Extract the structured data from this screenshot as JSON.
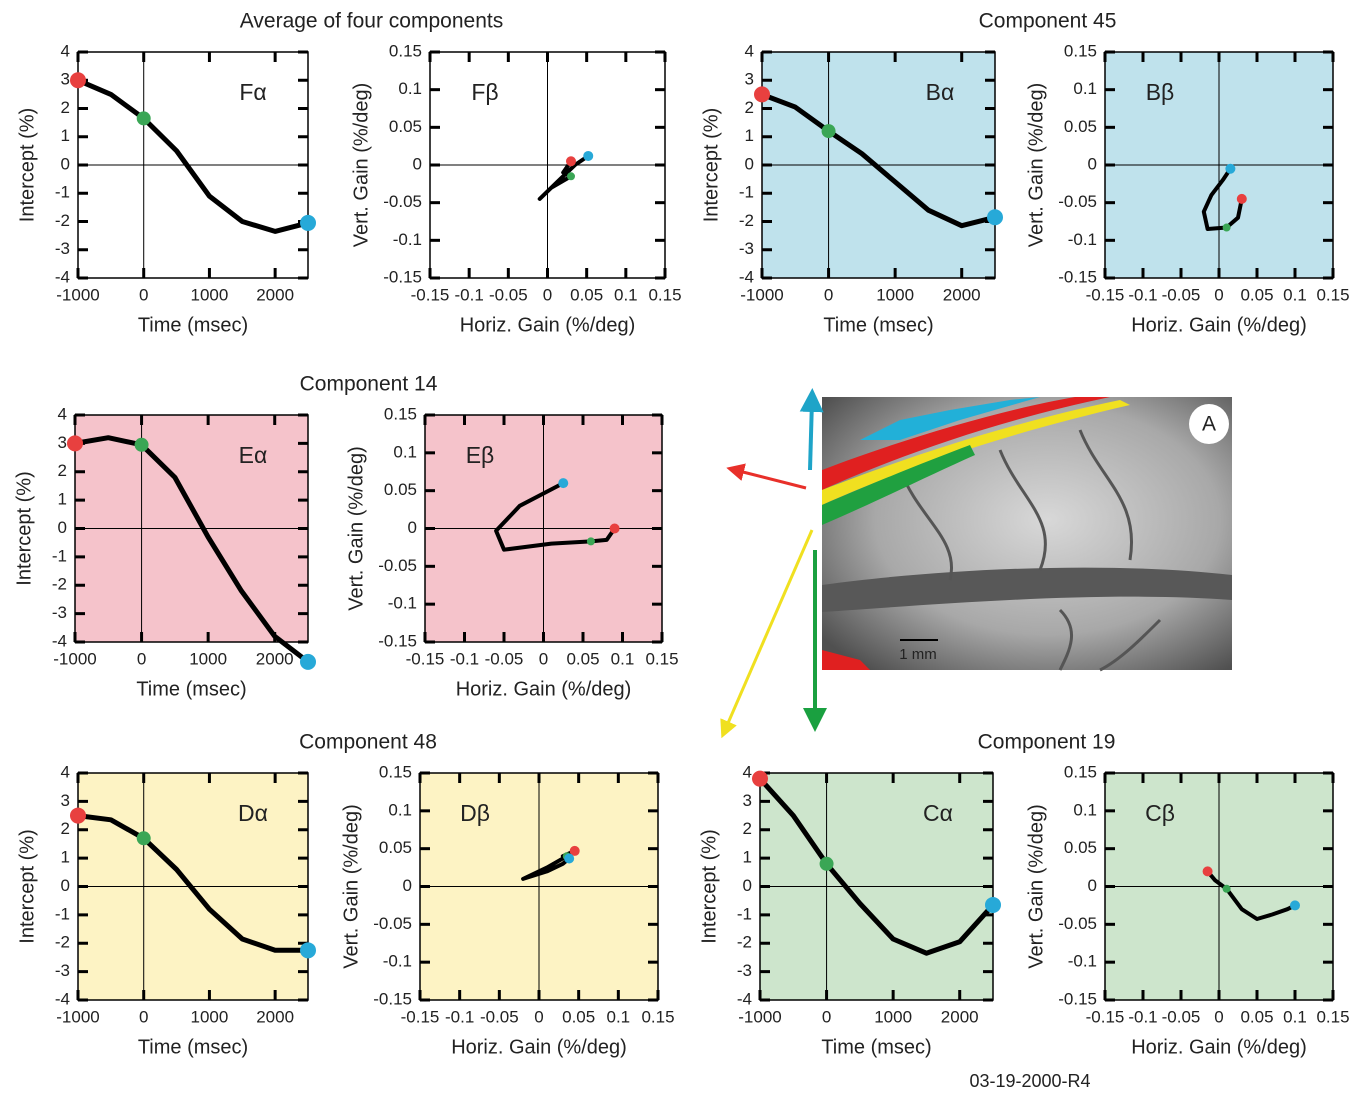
{
  "chart_data": [
    {
      "type": "line",
      "title": "Average of four components",
      "label": "Fα",
      "background": "#ffffff",
      "color": "#000000",
      "marker_colors": [
        "#e8403f",
        "#3aa655",
        "#27a9d8"
      ],
      "x_label": "Time (msec)",
      "y_label": "Intercept (%)",
      "x": [
        -1000,
        -500,
        0,
        500,
        1000,
        1500,
        2000,
        2500
      ],
      "values": [
        3.0,
        2.5,
        1.65,
        0.5,
        -1.1,
        -2.0,
        -2.35,
        -2.05
      ],
      "xlim": [
        -1000,
        2500
      ],
      "ylim": [
        -4,
        4
      ],
      "xticks": [
        -1000,
        0,
        1000,
        2000
      ],
      "yticks": [
        -4,
        -3,
        -2,
        -1,
        0,
        1,
        2,
        3,
        4
      ]
    },
    {
      "type": "line",
      "label": "Fβ",
      "background": "#ffffff",
      "color": "#000000",
      "marker_colors": [
        "#e8403f",
        "#3aa655",
        "#27a9d8"
      ],
      "x_label": "Horiz. Gain (%/deg)",
      "y_label": "Vert. Gain (%/deg)",
      "x": [
        0.03,
        0.02,
        0.03,
        0.005,
        -0.01,
        0.01,
        0.035,
        0.052
      ],
      "values": [
        0.005,
        -0.01,
        -0.015,
        -0.03,
        -0.045,
        -0.025,
        0.0,
        0.012
      ],
      "xlim": [
        -0.15,
        0.15
      ],
      "ylim": [
        -0.15,
        0.15
      ],
      "xticks": [
        -0.15,
        -0.1,
        -0.05,
        0,
        0.05,
        0.1,
        0.15
      ],
      "yticks": [
        -0.15,
        -0.1,
        -0.05,
        0,
        0.05,
        0.1,
        0.15
      ]
    },
    {
      "type": "line",
      "title": "Component 45",
      "label": "Bα",
      "background": "#bfe2ec",
      "color": "#000000",
      "marker_colors": [
        "#e8403f",
        "#3aa655",
        "#27a9d8"
      ],
      "x_label": "Time (msec)",
      "y_label": "Intercept (%)",
      "x": [
        -1000,
        -500,
        0,
        500,
        1000,
        1500,
        2000,
        2500
      ],
      "values": [
        2.5,
        2.05,
        1.2,
        0.4,
        -0.6,
        -1.6,
        -2.15,
        -1.85
      ],
      "xlim": [
        -1000,
        2500
      ],
      "ylim": [
        -4,
        4
      ],
      "xticks": [
        -1000,
        0,
        1000,
        2000
      ],
      "yticks": [
        -4,
        -3,
        -2,
        -1,
        0,
        1,
        2,
        3,
        4
      ]
    },
    {
      "type": "line",
      "label": "Bβ",
      "background": "#bfe2ec",
      "color": "#000000",
      "marker_colors": [
        "#e8403f",
        "#3aa655",
        "#27a9d8"
      ],
      "x_label": "Horiz. Gain (%/deg)",
      "y_label": "Vert. Gain (%/deg)",
      "x": [
        0.03,
        0.025,
        0.01,
        -0.015,
        -0.02,
        -0.01,
        0.005,
        0.015
      ],
      "values": [
        -0.045,
        -0.07,
        -0.083,
        -0.085,
        -0.062,
        -0.04,
        -0.02,
        -0.005
      ],
      "xlim": [
        -0.15,
        0.15
      ],
      "ylim": [
        -0.15,
        0.15
      ],
      "xticks": [
        -0.15,
        -0.1,
        -0.05,
        0,
        0.05,
        0.1,
        0.15
      ],
      "yticks": [
        -0.15,
        -0.1,
        -0.05,
        0,
        0.05,
        0.1,
        0.15
      ]
    },
    {
      "type": "line",
      "title": "Component 14",
      "label": "Eα",
      "background": "#f5c3cb",
      "color": "#000000",
      "marker_colors": [
        "#e8403f",
        "#3aa655",
        "#27a9d8"
      ],
      "x_label": "Time (msec)",
      "y_label": "Intercept (%)",
      "x": [
        -1000,
        -500,
        0,
        500,
        1000,
        1500,
        2000,
        2500
      ],
      "values": [
        3.0,
        3.2,
        2.95,
        1.8,
        -0.3,
        -2.2,
        -3.8,
        -4.7
      ],
      "xlim": [
        -1000,
        2500
      ],
      "ylim": [
        -4,
        4
      ],
      "xticks": [
        -1000,
        0,
        1000,
        2000
      ],
      "yticks": [
        -4,
        -3,
        -2,
        -1,
        0,
        1,
        2,
        3,
        4
      ]
    },
    {
      "type": "line",
      "label": "Eβ",
      "background": "#f5c3cb",
      "color": "#000000",
      "marker_colors": [
        "#e8403f",
        "#3aa655",
        "#27a9d8"
      ],
      "x_label": "Horiz. Gain (%/deg)",
      "y_label": "Vert. Gain (%/deg)",
      "x": [
        0.09,
        0.08,
        0.06,
        0.01,
        -0.05,
        -0.06,
        -0.03,
        0.025
      ],
      "values": [
        0.0,
        -0.015,
        -0.017,
        -0.02,
        -0.028,
        -0.003,
        0.03,
        0.06
      ],
      "xlim": [
        -0.15,
        0.15
      ],
      "ylim": [
        -0.15,
        0.15
      ],
      "xticks": [
        -0.15,
        -0.1,
        -0.05,
        0,
        0.05,
        0.1,
        0.15
      ],
      "yticks": [
        -0.15,
        -0.1,
        -0.05,
        0,
        0.05,
        0.1,
        0.15
      ]
    },
    {
      "type": "line",
      "title": "Component 48",
      "label": "Dα",
      "background": "#fdf3c4",
      "color": "#000000",
      "marker_colors": [
        "#e8403f",
        "#3aa655",
        "#27a9d8"
      ],
      "x_label": "Time (msec)",
      "y_label": "Intercept (%)",
      "x": [
        -1000,
        -500,
        0,
        500,
        1000,
        1500,
        2000,
        2500
      ],
      "values": [
        2.5,
        2.35,
        1.7,
        0.6,
        -0.8,
        -1.85,
        -2.25,
        -2.25
      ],
      "xlim": [
        -1000,
        2500
      ],
      "ylim": [
        -4,
        4
      ],
      "xticks": [
        -1000,
        0,
        1000,
        2000
      ],
      "yticks": [
        -4,
        -3,
        -2,
        -1,
        0,
        1,
        2,
        3,
        4
      ]
    },
    {
      "type": "line",
      "label": "Dβ",
      "background": "#fdf3c4",
      "color": "#000000",
      "marker_colors": [
        "#e8403f",
        "#3aa655",
        "#27a9d8"
      ],
      "x_label": "Horiz. Gain (%/deg)",
      "y_label": "Vert. Gain (%/deg)",
      "x": [
        0.045,
        0.03,
        0.035,
        0.01,
        -0.02,
        0.01,
        0.03,
        0.038
      ],
      "values": [
        0.047,
        0.04,
        0.04,
        0.025,
        0.01,
        0.02,
        0.03,
        0.037
      ],
      "xlim": [
        -0.15,
        0.15
      ],
      "ylim": [
        -0.15,
        0.15
      ],
      "xticks": [
        -0.15,
        -0.1,
        -0.05,
        0,
        0.05,
        0.1,
        0.15
      ],
      "yticks": [
        -0.15,
        -0.1,
        -0.05,
        0,
        0.05,
        0.1,
        0.15
      ]
    },
    {
      "type": "line",
      "title": "Component 19",
      "label": "Cα",
      "background": "#cde5cc",
      "color": "#000000",
      "marker_colors": [
        "#e8403f",
        "#3aa655",
        "#27a9d8"
      ],
      "x_label": "Time (msec)",
      "y_label": "Intercept (%)",
      "x": [
        -1000,
        -500,
        0,
        500,
        1000,
        1500,
        2000,
        2500
      ],
      "values": [
        3.8,
        2.5,
        0.8,
        -0.6,
        -1.85,
        -2.35,
        -1.95,
        -0.65
      ],
      "xlim": [
        -1000,
        2500
      ],
      "ylim": [
        -4,
        4
      ],
      "xticks": [
        -1000,
        0,
        1000,
        2000
      ],
      "yticks": [
        -4,
        -3,
        -2,
        -1,
        0,
        1,
        2,
        3,
        4
      ]
    },
    {
      "type": "line",
      "label": "Cβ",
      "background": "#cde5cc",
      "color": "#000000",
      "marker_colors": [
        "#e8403f",
        "#3aa655",
        "#27a9d8"
      ],
      "x_label": "Horiz. Gain (%/deg)",
      "y_label": "Vert. Gain (%/deg)",
      "x": [
        -0.015,
        -0.005,
        0.01,
        0.03,
        0.05,
        0.07,
        0.09,
        0.1
      ],
      "values": [
        0.02,
        0.008,
        -0.003,
        -0.03,
        -0.043,
        -0.037,
        -0.03,
        -0.025
      ],
      "xlim": [
        -0.15,
        0.15
      ],
      "ylim": [
        -0.15,
        0.15
      ],
      "xticks": [
        -0.15,
        -0.1,
        -0.05,
        0,
        0.05,
        0.1,
        0.15
      ],
      "yticks": [
        -0.15,
        -0.1,
        -0.05,
        0,
        0.05,
        0.1,
        0.15
      ]
    }
  ],
  "image": {
    "panel_label": "A",
    "scale_label": "1 mm"
  },
  "footer": "03-19-2000-R4"
}
